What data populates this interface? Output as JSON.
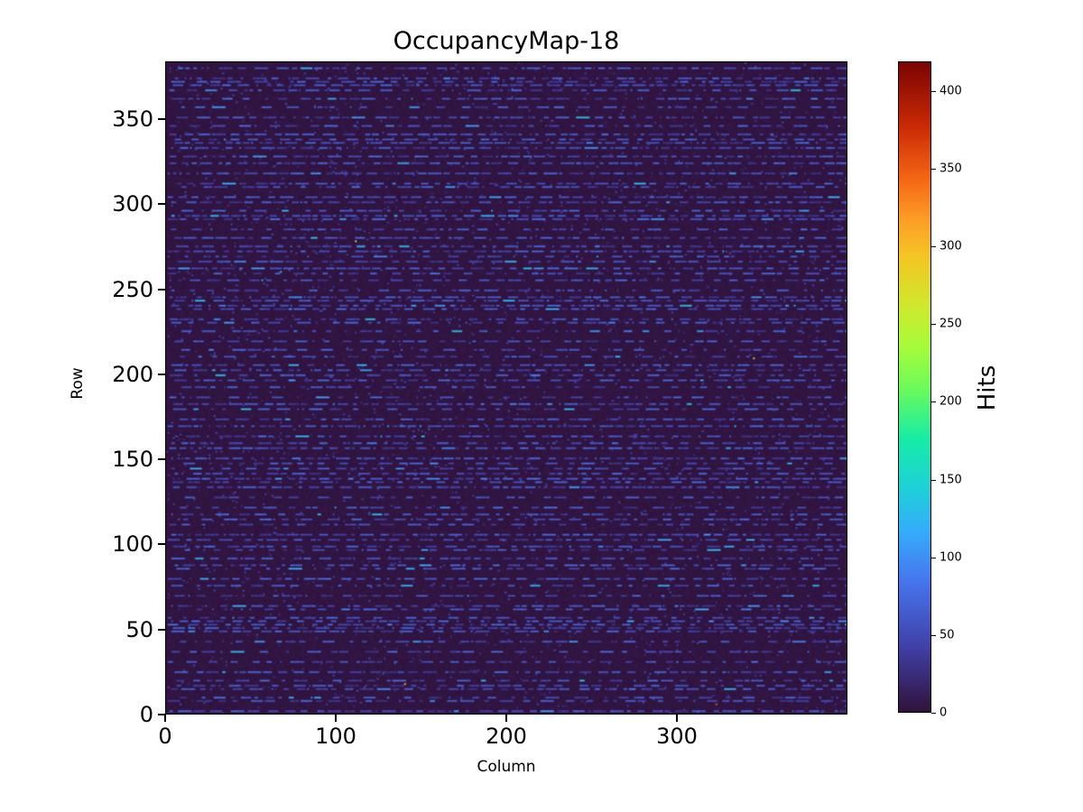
{
  "title": "OccupancyMap-18",
  "axes": {
    "xlabel": "Column",
    "ylabel": "Row",
    "x_ticks": [
      0,
      100,
      200,
      300
    ],
    "y_ticks": [
      0,
      50,
      100,
      150,
      200,
      250,
      300,
      350
    ]
  },
  "colorbar": {
    "label": "Hits",
    "ticks": [
      0,
      50,
      100,
      150,
      200,
      250,
      300,
      350,
      400
    ],
    "vmin": 0,
    "vmax": 419
  },
  "colors": {
    "figure_background": "#ffffff",
    "text": "#000000",
    "spine": "#000000",
    "colormap": "turbo",
    "turbo_stops": [
      [
        0.0,
        "#30123b"
      ],
      [
        0.1,
        "#4040a6"
      ],
      [
        0.2,
        "#4675ed"
      ],
      [
        0.28,
        "#33aefa"
      ],
      [
        0.35,
        "#1dd3d4"
      ],
      [
        0.42,
        "#16eca6"
      ],
      [
        0.5,
        "#6efb58"
      ],
      [
        0.56,
        "#a4fc3b"
      ],
      [
        0.62,
        "#ccea2e"
      ],
      [
        0.7,
        "#f3c624"
      ],
      [
        0.76,
        "#fd9b26"
      ],
      [
        0.82,
        "#f46714"
      ],
      [
        0.9,
        "#cb2a05"
      ],
      [
        1.0,
        "#7a0403"
      ]
    ]
  },
  "chart_data": {
    "type": "heatmap",
    "title": "OccupancyMap-18",
    "xlabel": "Column",
    "ylabel": "Row",
    "value_label": "Hits",
    "cols": 400,
    "rows": 384,
    "xlim": [
      0,
      400
    ],
    "ylim": [
      0,
      384
    ],
    "vmin": 0,
    "vmax": 419,
    "colormap": "turbo",
    "pattern": {
      "description": "Pixel-detector occupancy map: dark near-zero background with horizontal dashed stripes of low-hit (blue, ~25-95 hits) pixels recurring every 2-6 rows, sparse isolated blue hits elsewhere, and a few rare hot pixels",
      "seed": 18,
      "stripe_row_step": [
        2,
        6
      ],
      "dash_run_cells": [
        1,
        8
      ],
      "dash_gap_cells": [
        1,
        12
      ],
      "stripe_value_range": [
        28,
        95
      ],
      "bright_segment_probability": 0.05,
      "sparse_hit_probability": 0.012,
      "sparse_value_range": [
        18,
        55
      ],
      "hot_pixels": [
        {
          "col": 345,
          "row": 209,
          "hits": 250
        },
        {
          "col": 140,
          "row": 17,
          "hits": 300
        },
        {
          "col": 323,
          "row": 5,
          "hits": 350
        },
        {
          "col": 67,
          "row": 260,
          "hits": 130
        },
        {
          "col": 111,
          "row": 278,
          "hits": 270
        }
      ]
    }
  }
}
